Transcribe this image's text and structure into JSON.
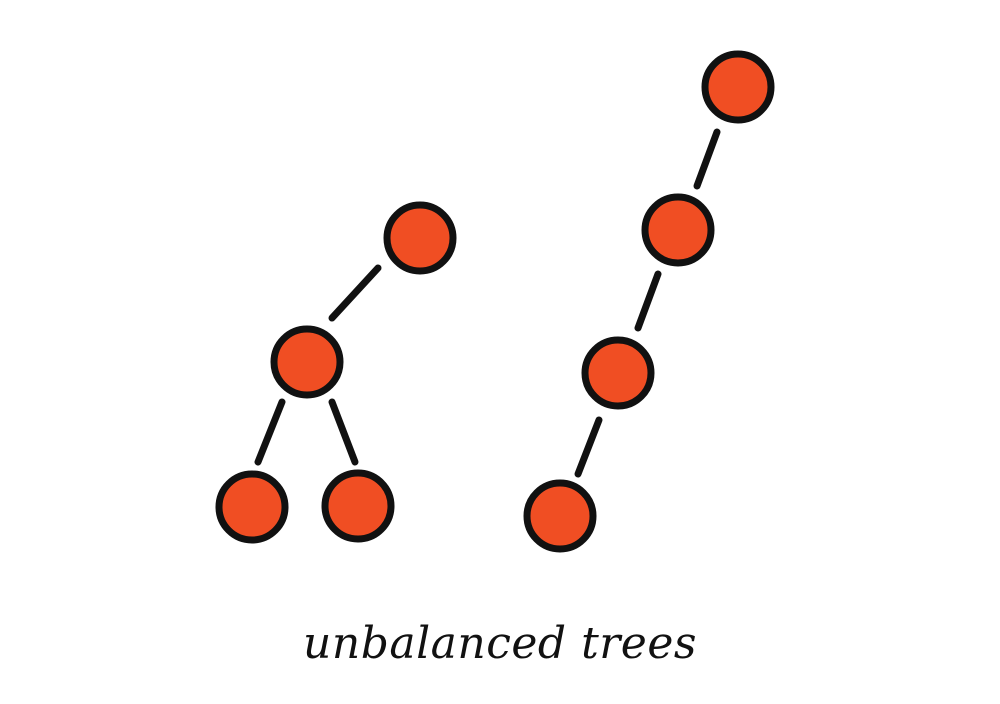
{
  "caption": "unbalanced trees",
  "colors": {
    "node_fill": "#f04e23",
    "outline": "#111111",
    "background": "#ffffff"
  },
  "trees": [
    {
      "name": "left-tree",
      "nodes": [
        "root",
        "child",
        "leaf-left",
        "leaf-right"
      ],
      "edges": [
        [
          "root",
          "child"
        ],
        [
          "child",
          "leaf-left"
        ],
        [
          "child",
          "leaf-right"
        ]
      ]
    },
    {
      "name": "right-tree",
      "nodes": [
        "n1",
        "n2",
        "n3",
        "n4"
      ],
      "edges": [
        [
          "n1",
          "n2"
        ],
        [
          "n2",
          "n3"
        ],
        [
          "n3",
          "n4"
        ]
      ]
    }
  ]
}
